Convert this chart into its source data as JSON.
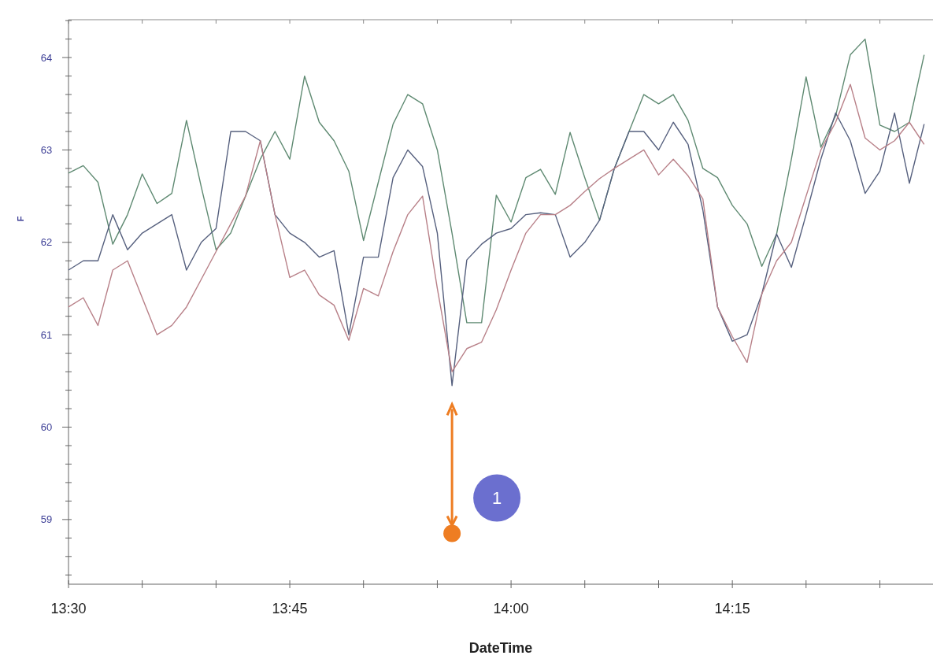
{
  "chart_data": {
    "type": "line",
    "xlabel": "DateTime",
    "ylabel": "F",
    "annotations": [
      "1"
    ],
    "x": [
      13.5,
      13.5167,
      13.5333,
      13.55,
      13.5667,
      13.5833,
      13.6,
      13.6167,
      13.6333,
      13.65,
      13.6667,
      13.6833,
      13.7,
      13.7167,
      13.7333,
      13.75,
      13.7667,
      13.7833,
      13.8,
      13.8167,
      13.8333,
      13.85,
      13.8667,
      13.8833,
      13.9,
      13.9167,
      13.9333,
      13.95,
      13.9667,
      13.9833,
      14.0,
      14.0167,
      14.0333,
      14.05,
      14.0667,
      14.0833,
      14.1,
      14.1167,
      14.1333,
      14.15,
      14.1667,
      14.1833,
      14.2,
      14.2167,
      14.2333,
      14.25,
      14.2667,
      14.2833,
      14.3,
      14.3167,
      14.3333,
      14.35,
      14.3667,
      14.3833,
      14.4,
      14.4167,
      14.4333,
      14.45,
      14.4667
    ],
    "series": [
      {
        "color": "#5f8a72",
        "values": [
          62.75,
          62.83,
          62.65,
          61.98,
          62.3,
          62.74,
          62.42,
          62.53,
          63.32,
          62.6,
          61.92,
          62.1,
          62.5,
          62.9,
          63.2,
          62.9,
          63.8,
          63.3,
          63.1,
          62.77,
          62.02,
          62.65,
          63.28,
          63.6,
          63.5,
          63.0,
          62.1,
          61.13,
          61.13,
          62.51,
          62.22,
          62.7,
          62.79,
          62.52,
          63.19,
          62.7,
          62.24,
          62.8,
          63.2,
          63.6,
          63.5,
          63.6,
          63.32,
          62.8,
          62.7,
          62.4,
          62.2,
          61.74,
          62.09,
          62.9,
          63.79,
          63.03,
          63.37,
          64.03,
          64.2,
          63.27,
          63.2,
          63.3,
          64.03
        ]
      },
      {
        "color": "#56607e",
        "values": [
          61.7,
          61.8,
          61.8,
          62.3,
          61.92,
          62.1,
          62.2,
          62.3,
          61.7,
          62.0,
          62.15,
          63.2,
          63.2,
          63.1,
          62.3,
          62.1,
          62.0,
          61.84,
          61.91,
          61.0,
          61.84,
          61.84,
          62.7,
          63.0,
          62.82,
          62.1,
          60.45,
          61.81,
          61.98,
          62.1,
          62.15,
          62.3,
          62.32,
          62.3,
          61.84,
          62.0,
          62.24,
          62.8,
          63.2,
          63.2,
          63.0,
          63.3,
          63.06,
          62.35,
          61.3,
          60.93,
          61.0,
          61.44,
          62.09,
          61.73,
          62.3,
          62.9,
          63.4,
          63.1,
          62.53,
          62.77,
          63.4,
          62.64,
          63.28
        ]
      },
      {
        "color": "#b88088",
        "values": [
          61.3,
          61.4,
          61.1,
          61.7,
          61.8,
          61.4,
          61.0,
          61.1,
          61.3,
          61.6,
          61.9,
          62.2,
          62.5,
          63.1,
          62.3,
          61.62,
          61.7,
          61.43,
          61.32,
          60.94,
          61.5,
          61.42,
          61.9,
          62.3,
          62.5,
          61.5,
          60.6,
          60.85,
          60.92,
          61.27,
          61.7,
          62.1,
          62.3,
          62.3,
          62.4,
          62.55,
          62.69,
          62.8,
          62.9,
          63.0,
          62.73,
          62.9,
          62.72,
          62.47,
          61.3,
          60.98,
          60.7,
          61.44,
          61.8,
          62.0,
          62.5,
          63.0,
          63.3,
          63.71,
          63.13,
          63.0,
          63.1,
          63.3,
          63.06
        ]
      },
      {
        "type": "scatter",
        "marker": "circle",
        "color": "#ee7d22",
        "x": [
          13.9333
        ],
        "values": [
          58.85
        ]
      }
    ],
    "xlim": [
      13.5,
      14.4767
    ],
    "xticks": [
      {
        "value": 13.5,
        "label": "13:30"
      },
      {
        "value": 13.5833,
        "label": null
      },
      {
        "value": 13.6667,
        "label": null
      },
      {
        "value": 13.75,
        "label": "13:45"
      },
      {
        "value": 13.8333,
        "label": null
      },
      {
        "value": 13.9167,
        "label": null
      },
      {
        "value": 14.0,
        "label": "14:00"
      },
      {
        "value": 14.0833,
        "label": null
      },
      {
        "value": 14.1667,
        "label": null
      },
      {
        "value": 14.25,
        "label": "14:15"
      },
      {
        "value": 14.3333,
        "label": null
      },
      {
        "value": 14.4167,
        "label": null
      }
    ],
    "ylim": [
      58.3,
      64.41
    ],
    "yticks": [
      {
        "value": 58.4,
        "label": null
      },
      {
        "value": 58.6,
        "label": null
      },
      {
        "value": 58.8,
        "label": null
      },
      59,
      {
        "value": 59.2,
        "label": null
      },
      {
        "value": 59.4,
        "label": null
      },
      {
        "value": 59.6,
        "label": null
      },
      {
        "value": 59.8,
        "label": null
      },
      60,
      {
        "value": 60.2,
        "label": null
      },
      {
        "value": 60.4,
        "label": null
      },
      {
        "value": 60.6,
        "label": null
      },
      {
        "value": 60.8,
        "label": null
      },
      61,
      {
        "value": 61.2,
        "label": null
      },
      {
        "value": 61.4,
        "label": null
      },
      {
        "value": 61.6,
        "label": null
      },
      {
        "value": 61.8,
        "label": null
      },
      62,
      {
        "value": 62.2,
        "label": null
      },
      {
        "value": 62.4,
        "label": null
      },
      {
        "value": 62.6,
        "label": null
      },
      {
        "value": 62.8,
        "label": null
      },
      63,
      {
        "value": 63.2,
        "label": null
      },
      {
        "value": 63.4,
        "label": null
      },
      {
        "value": 63.6,
        "label": null
      },
      {
        "value": 63.8,
        "label": null
      },
      64,
      {
        "value": 64.2,
        "label": null
      },
      {
        "value": 64.4,
        "label": null
      }
    ],
    "grid": false,
    "line_style": "solid",
    "marker": "none"
  }
}
